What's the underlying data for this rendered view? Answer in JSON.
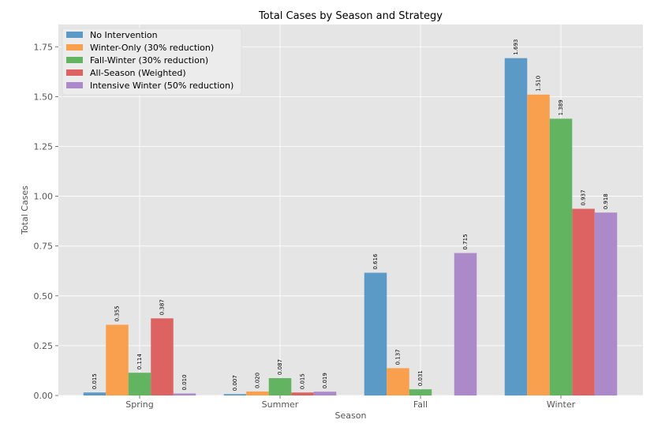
{
  "chart_data": {
    "type": "bar",
    "title": "Total Cases by Season and Strategy",
    "xlabel": "Season",
    "ylabel": "Total Cases",
    "ylim": [
      0,
      1.862
    ],
    "yticks": [
      0.0,
      0.25,
      0.5,
      0.75,
      1.0,
      1.25,
      1.5,
      1.75
    ],
    "ytick_labels": [
      "0.00",
      "0.25",
      "0.50",
      "0.75",
      "1.00",
      "1.25",
      "1.50",
      "1.75"
    ],
    "grid": true,
    "legend_position": "top-left",
    "categories": [
      "Spring",
      "Summer",
      "Fall",
      "Winter"
    ],
    "series": [
      {
        "name": "No Intervention",
        "color": "#5b9ac6",
        "values": [
          0.015,
          0.007,
          0.616,
          1.693
        ],
        "labels": [
          "0.015",
          "0.007",
          "0.616",
          "1.693"
        ]
      },
      {
        "name": "Winter-Only (30% reduction)",
        "color": "#f8a04d",
        "values": [
          0.355,
          0.02,
          0.137,
          1.51
        ],
        "labels": [
          "0.355",
          "0.020",
          "0.137",
          "1.510"
        ]
      },
      {
        "name": "Fall-Winter (30% reduction)",
        "color": "#62b461",
        "values": [
          0.114,
          0.087,
          0.031,
          1.389
        ],
        "labels": [
          "0.114",
          "0.087",
          "0.031",
          "1.389"
        ]
      },
      {
        "name": "All-Season (Weighted)",
        "color": "#dd6262",
        "values": [
          0.387,
          0.015,
          null,
          0.937
        ],
        "labels": [
          "0.387",
          "0.015",
          null,
          "0.937"
        ]
      },
      {
        "name": "Intensive Winter (50% reduction)",
        "color": "#ac8ac9",
        "values": [
          0.01,
          0.019,
          0.715,
          0.918
        ],
        "labels": [
          "0.010",
          "0.019",
          "0.715",
          "0.918"
        ]
      }
    ],
    "colors": {
      "plot_background": "#e5e5e5",
      "grid": "#ffffff",
      "legend_background": "#ececec"
    }
  }
}
